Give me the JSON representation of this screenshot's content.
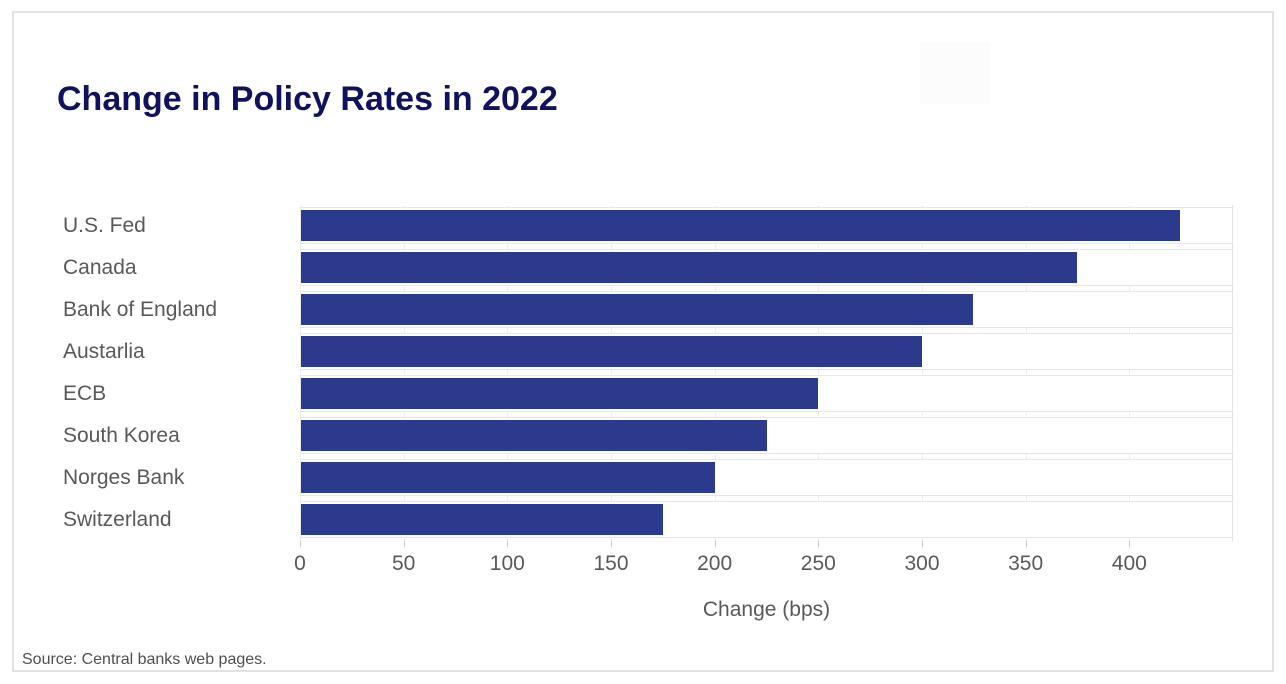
{
  "title": "Change in Policy Rates in 2022",
  "source": "Source: Central banks web pages.",
  "x_axis_title": "Change (bps)",
  "colors": {
    "bar": "#2b3a8c",
    "title_text": "#11125e",
    "label_text": "#595959",
    "frame_border": "#e2e2e2"
  },
  "chart_data": {
    "type": "bar",
    "orientation": "horizontal",
    "title": "Change in Policy Rates in 2022",
    "categories": [
      "U.S. Fed",
      "Canada",
      "Bank of England",
      "Austarlia",
      "ECB",
      "South Korea",
      "Norges Bank",
      "Switzerland"
    ],
    "values": [
      425,
      375,
      325,
      300,
      250,
      225,
      200,
      175
    ],
    "unit": "bps",
    "xlabel": "Change (bps)",
    "ylabel": "",
    "xlim": [
      0,
      450
    ],
    "xticks": [
      0,
      50,
      100,
      150,
      200,
      250,
      300,
      350,
      400
    ],
    "grid": true,
    "legend": false,
    "bar_color": "#2b3a8c",
    "source": "Source: Central banks web pages."
  }
}
